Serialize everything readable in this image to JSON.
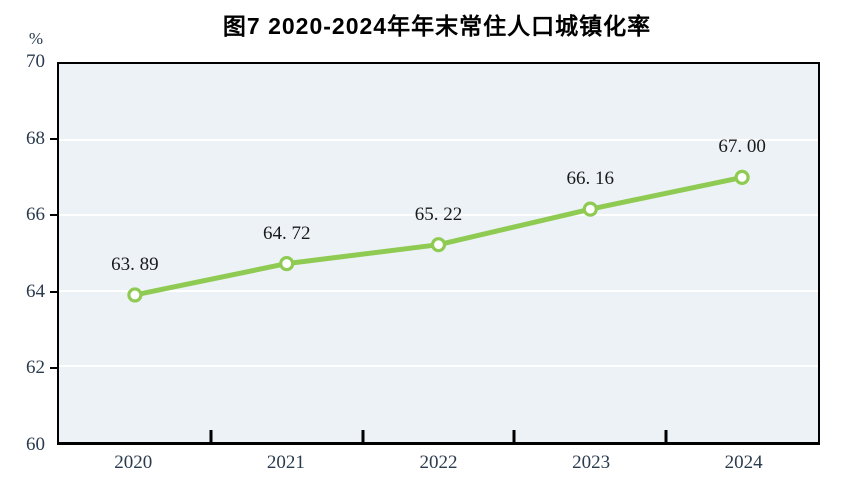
{
  "title": "图7  2020-2024年年末常住人口城镇化率",
  "chart_data": {
    "type": "line",
    "title": "图7  2020-2024年年末常住人口城镇化率",
    "categories": [
      "2020",
      "2021",
      "2022",
      "2023",
      "2024"
    ],
    "values": [
      63.89,
      64.72,
      65.22,
      66.16,
      67.0
    ],
    "point_labels": [
      "63. 89",
      "64. 72",
      "65. 22",
      "66. 16",
      "67. 00"
    ],
    "series_name": "年末常住人口城镇化率",
    "xlabel": "",
    "ylabel": "%",
    "ylim": [
      60,
      70
    ],
    "yticks": [
      "70",
      "68",
      "66",
      "64",
      "62",
      "60"
    ],
    "grid": "horizontal-white-lines",
    "legend_position": "none",
    "colors": {
      "line": "#8fcb52",
      "marker_fill": "#ffffff",
      "marker_stroke": "#8fcb52",
      "plot_background": "#edf2f7",
      "axis": "#000000",
      "tick_text": "#2b3b4e",
      "data_label_text": "#1a1a1a"
    }
  }
}
